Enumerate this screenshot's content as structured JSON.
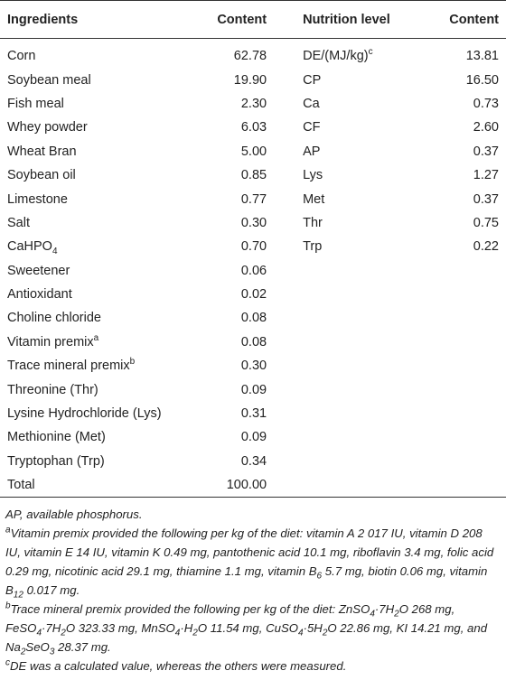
{
  "table": {
    "header": [
      "Ingredients",
      "Content",
      "Nutrition level",
      "Content"
    ],
    "left_rows": [
      [
        [
          "Corn"
        ],
        "62.78"
      ],
      [
        [
          "Soybean meal"
        ],
        "19.90"
      ],
      [
        [
          "Fish meal"
        ],
        "2.30"
      ],
      [
        [
          "Whey powder"
        ],
        "6.03"
      ],
      [
        [
          "Wheat Bran"
        ],
        "5.00"
      ],
      [
        [
          "Soybean oil"
        ],
        "0.85"
      ],
      [
        [
          "Limestone"
        ],
        "0.77"
      ],
      [
        [
          "Salt"
        ],
        "0.30"
      ],
      [
        [
          "CaHPO",
          {
            "sub": "4"
          }
        ],
        "0.70"
      ],
      [
        [
          "Sweetener"
        ],
        "0.06"
      ],
      [
        [
          "Antioxidant"
        ],
        "0.02"
      ],
      [
        [
          "Choline chloride"
        ],
        "0.08"
      ],
      [
        [
          "Vitamin premix",
          {
            "sup": "a"
          }
        ],
        "0.08"
      ],
      [
        [
          "Trace mineral premix",
          {
            "sup": "b"
          }
        ],
        "0.30"
      ],
      [
        [
          "Threonine (Thr)"
        ],
        "0.09"
      ],
      [
        [
          "Lysine Hydrochloride (Lys)"
        ],
        "0.31"
      ],
      [
        [
          "Methionine (Met)"
        ],
        "0.09"
      ],
      [
        [
          "Tryptophan (Trp)"
        ],
        "0.34"
      ],
      [
        [
          "Total"
        ],
        "100.00"
      ]
    ],
    "right_rows": [
      [
        [
          "DE/(MJ/kg)",
          {
            "sup": "c"
          }
        ],
        "13.81"
      ],
      [
        [
          "CP"
        ],
        "16.50"
      ],
      [
        [
          "Ca"
        ],
        "0.73"
      ],
      [
        [
          "CF"
        ],
        "2.60"
      ],
      [
        [
          "AP"
        ],
        "0.37"
      ],
      [
        [
          "Lys"
        ],
        "1.27"
      ],
      [
        [
          "Met"
        ],
        "0.37"
      ],
      [
        [
          "Thr"
        ],
        "0.75"
      ],
      [
        [
          "Trp"
        ],
        "0.22"
      ]
    ]
  },
  "footnotes": [
    [
      "AP, available phosphorus."
    ],
    [
      {
        "sup": "a"
      },
      "Vitamin premix provided the following per kg of the diet: vitamin A 2 017 IU, vitamin D 208 IU, vitamin E 14 IU, vitamin K 0.49 mg, pantothenic acid 10.1 mg, riboflavin 3.4 mg, folic acid 0.29 mg, nicotinic acid 29.1 mg, thiamine 1.1 mg, vitamin B",
      {
        "sub": "6"
      },
      " 5.7 mg, biotin 0.06 mg, vitamin B",
      {
        "sub": "12"
      },
      " 0.017 mg."
    ],
    [
      {
        "sup": "b"
      },
      "Trace mineral premix provided the following per kg of the diet: ZnSO",
      {
        "sub": "4"
      },
      "·7H",
      {
        "sub": "2"
      },
      "O 268 mg, FeSO",
      {
        "sub": "4"
      },
      "·7H",
      {
        "sub": "2"
      },
      "O 323.33 mg, MnSO",
      {
        "sub": "4"
      },
      "·H",
      {
        "sub": "2"
      },
      "O 11.54 mg, CuSO",
      {
        "sub": "4"
      },
      "·5H",
      {
        "sub": "2"
      },
      "O 22.86 mg, KI 14.21 mg, and Na",
      {
        "sub": "2"
      },
      "SeO",
      {
        "sub": "3"
      },
      " 28.37 mg."
    ],
    [
      {
        "sup": "c"
      },
      "DE was a calculated value, whereas the others were measured."
    ]
  ]
}
